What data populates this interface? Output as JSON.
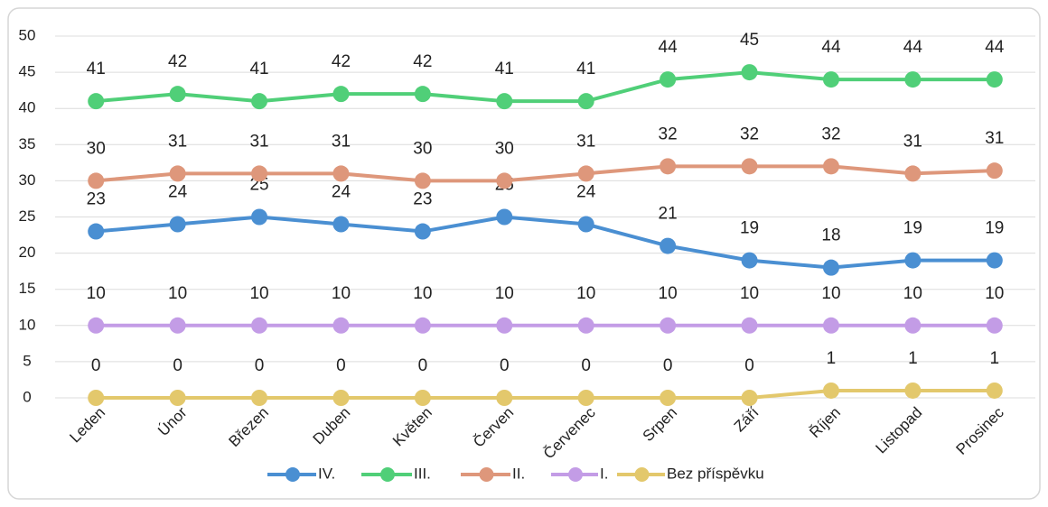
{
  "chart_data": {
    "type": "line",
    "categories": [
      "Leden",
      "Únor",
      "Březen",
      "Duben",
      "Květen",
      "Červen",
      "Červenec",
      "Srpen",
      "Září",
      "Říjen",
      "Listopad",
      "Prosinec"
    ],
    "series": [
      {
        "name": "IV.",
        "color": "#4a8fd2",
        "values": [
          23,
          24,
          25,
          24,
          23,
          25,
          24,
          21,
          19,
          18,
          19,
          19
        ]
      },
      {
        "name": "III.",
        "color": "#50cf78",
        "values": [
          41,
          42,
          41,
          42,
          42,
          41,
          41,
          44,
          45,
          44,
          44,
          44
        ]
      },
      {
        "name": "II.",
        "color": "#de977b",
        "values": [
          30,
          31,
          31,
          31,
          30,
          30,
          31,
          32,
          32,
          32,
          31,
          31.4
        ],
        "value_labels": [
          "30",
          "31",
          "31",
          "31",
          "30",
          "30",
          "31",
          "32",
          "32",
          "32",
          "31",
          "31"
        ]
      },
      {
        "name": "I.",
        "color": "#c39ce6",
        "values": [
          10,
          10,
          10,
          10,
          10,
          10,
          10,
          10,
          10,
          10,
          10,
          10
        ]
      },
      {
        "name": "Bez příspěvku",
        "color": "#e3c86c",
        "values": [
          0,
          0,
          0,
          0,
          0,
          0,
          0,
          0,
          0,
          1,
          1,
          1
        ]
      }
    ],
    "ylim": [
      0,
      50
    ],
    "yticks": [
      0,
      5,
      10,
      15,
      20,
      25,
      30,
      35,
      40,
      45,
      50
    ],
    "grid": true,
    "legend": "bottom"
  }
}
